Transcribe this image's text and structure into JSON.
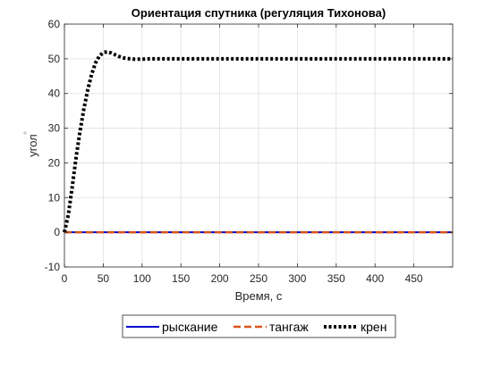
{
  "chart_data": {
    "type": "line",
    "title": "Ориентация спутника (регуляция Тихонова)",
    "xlabel": "Время, с",
    "ylabel": "угол",
    "xlim": [
      0,
      500
    ],
    "ylim": [
      -10,
      60
    ],
    "xticks": [
      "0",
      "50",
      "100",
      "150",
      "200",
      "250",
      "300",
      "350",
      "400",
      "450"
    ],
    "yticks": [
      "-10",
      "0",
      "10",
      "20",
      "30",
      "40",
      "50",
      "60"
    ],
    "grid": true,
    "legend_position": "bottom-center",
    "series": [
      {
        "name": "рыскание",
        "color": "#0000cc",
        "style": "solid",
        "x": [
          0,
          500
        ],
        "y": [
          0,
          0
        ]
      },
      {
        "name": "тангаж",
        "color": "#d95319",
        "style": "dashed",
        "x": [
          0,
          500
        ],
        "y": [
          0,
          0
        ]
      },
      {
        "name": "крен",
        "color": "#000000",
        "style": "dotted",
        "x": [
          0,
          5,
          10,
          15,
          20,
          25,
          30,
          35,
          40,
          45,
          50,
          55,
          60,
          65,
          70,
          75,
          80,
          90,
          100,
          110,
          120,
          150,
          200,
          300,
          400,
          500
        ],
        "y": [
          0,
          5,
          13,
          21.5,
          29,
          35.5,
          41,
          45.5,
          48.8,
          50.8,
          51.8,
          52,
          51.7,
          51.2,
          50.7,
          50.3,
          50.1,
          49.9,
          49.9,
          50,
          50,
          50,
          50,
          50,
          50,
          50
        ]
      }
    ]
  }
}
